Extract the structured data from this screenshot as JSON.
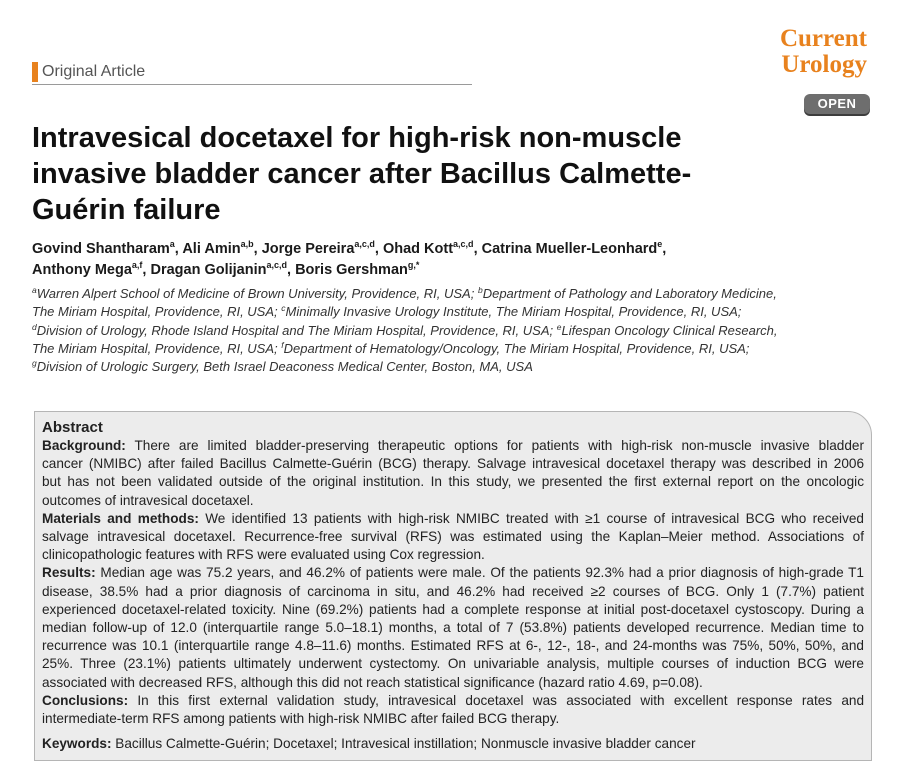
{
  "header": {
    "article_type": "Original Article",
    "journal_line1": "Current",
    "journal_line2": "Urology",
    "open_badge": "OPEN",
    "accent_color": "#e8821e"
  },
  "title_lines": [
    "Intravesical docetaxel for high-risk non-muscle",
    "invasive bladder cancer after Bacillus Calmette-",
    "Guérin failure"
  ],
  "authors": {
    "line1": [
      {
        "name": "Govind Shantharam",
        "sup": "a",
        "sep": ", "
      },
      {
        "name": "Ali Amin",
        "sup": "a,b",
        "sep": ", "
      },
      {
        "name": "Jorge Pereira",
        "sup": "a,c,d",
        "sep": ", "
      },
      {
        "name": "Ohad Kott",
        "sup": "a,c,d",
        "sep": ", "
      },
      {
        "name": "Catrina Mueller-Leonhard",
        "sup": "e",
        "sep": ","
      }
    ],
    "line2": [
      {
        "name": "Anthony Mega",
        "sup": "a,f",
        "sep": ", "
      },
      {
        "name": "Dragan Golijanin",
        "sup": "a,c,d",
        "sep": ", "
      },
      {
        "name": "Boris Gershman",
        "sup": "g,*",
        "sep": ""
      }
    ]
  },
  "affiliations": {
    "a": "Warren Alpert School of Medicine of Brown University, Providence, RI, USA;",
    "b": "Department of Pathology and Laboratory Medicine,",
    "b2": "The Miriam Hospital, Providence, RI, USA;",
    "c": "Minimally Invasive Urology Institute, The Miriam Hospital, Providence, RI, USA;",
    "d": "Division of Urology, Rhode Island Hospital and The Miriam Hospital, Providence, RI, USA;",
    "e": "Lifespan Oncology Clinical Research,",
    "e2": "The Miriam Hospital, Providence, RI, USA;",
    "f": "Department of Hematology/Oncology, The Miriam Hospital, Providence, RI, USA;",
    "g": "Division of Urologic Surgery, Beth Israel Deaconess Medical Center, Boston, MA, USA"
  },
  "abstract": {
    "heading": "Abstract",
    "background_label": "Background:",
    "background_lines": [
      " There are limited bladder-preserving therapeutic options for patients with high-risk non-muscle invasive bladder",
      "cancer (NMIBC) after failed Bacillus Calmette-Guérin (BCG) therapy. Salvage intravesical docetaxel therapy was described in 2006",
      "but has not been validated outside of the original institution. In this study, we presented the first external report on the oncologic",
      "outcomes of intravesical docetaxel."
    ],
    "methods_label": "Materials and methods:",
    "methods_lines": [
      " We identified 13 patients with high-risk NMIBC treated with ≥1 course of intravesical BCG who received",
      "salvage intravesical docetaxel. Recurrence-free survival (RFS) was estimated using the Kaplan–Meier method. Associations of",
      "clinicopathologic features with RFS were evaluated using Cox regression."
    ],
    "results_label": "Results:",
    "results_lines": [
      " Median age was 75.2 years, and 46.2% of patients were male. Of the patients 92.3% had a prior diagnosis of high-grade T1",
      "disease, 38.5% had a prior diagnosis of carcinoma in situ, and 46.2% had received ≥2 courses of BCG. Only 1 (7.7%) patient",
      "experienced docetaxel-related toxicity. Nine (69.2%) patients had a complete response at initial post-docetaxel cystoscopy. During a",
      "median follow-up of 12.0 (interquartile range 5.0–18.1) months, a total of 7 (53.8%) patients developed recurrence. Median time to",
      "recurrence was 10.1 (interquartile range 4.8–11.6) months. Estimated RFS at 6-, 12-, 18-, and 24-months was 75%, 50%, 50%, and",
      "25%. Three (23.1%) patients ultimately underwent cystectomy. On univariable analysis, multiple courses of induction BCG were",
      "associated with decreased RFS, although this did not reach statistical significance (hazard ratio 4.69, p=0.08)."
    ],
    "conclusions_label": "Conclusions:",
    "conclusions_lines": [
      " In this first external validation study, intravesical docetaxel was associated with excellent response rates and",
      "intermediate-term RFS among patients with high-risk NMIBC after failed BCG therapy."
    ],
    "keywords_label": "Keywords:",
    "keywords": " Bacillus Calmette-Guérin; Docetaxel; Intravesical instillation; Nonmuscle invasive bladder cancer"
  }
}
